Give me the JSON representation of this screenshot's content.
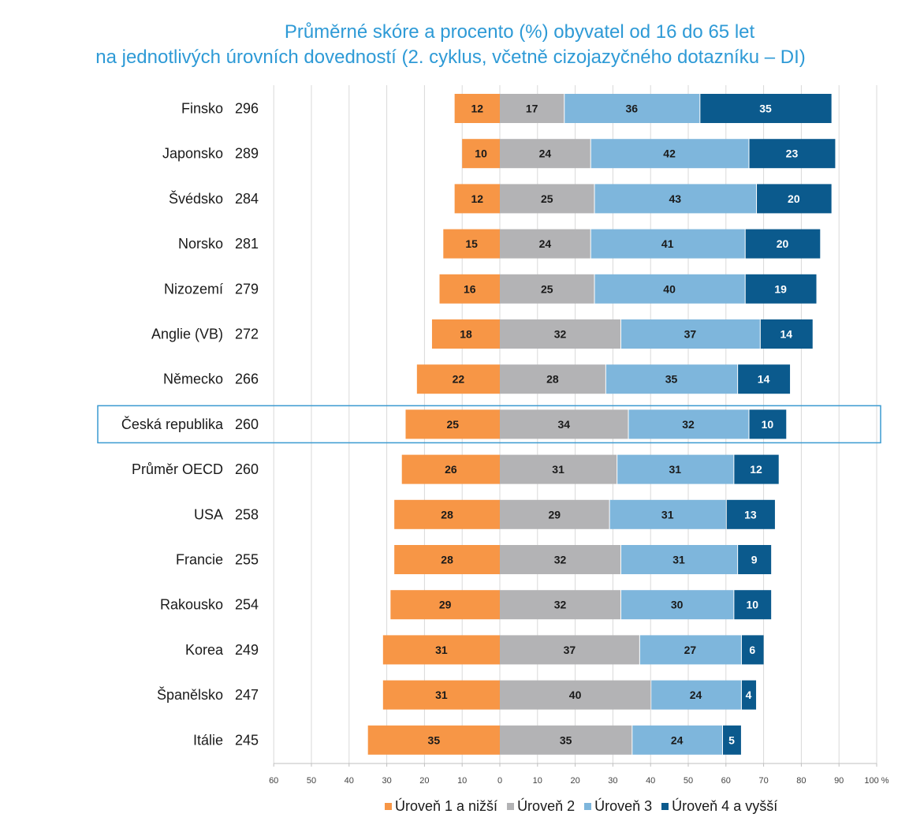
{
  "title_line1": "Průměrné skóre a procento (%) obyvatel od 16 do 65 let",
  "title_line2": "na jednotlivých úrovních dovedností (2. cyklus, včetně cizojazyčného dotazníku – DI)",
  "colors": {
    "title": "#2e9ad6",
    "level1": "#f79646",
    "level2": "#b3b3b5",
    "level3": "#7eb6dc",
    "level4": "#0b5a8d",
    "highlight": "#3a9ad1",
    "gridline": "#d9d9d9"
  },
  "chart_data": {
    "type": "bar",
    "orientation": "horizontal-diverging",
    "categories": [
      "Finsko",
      "Japonsko",
      "Švédsko",
      "Norsko",
      "Nizozemí",
      "Anglie (VB)",
      "Německo",
      "Česká republika",
      "Průměr OECD",
      "USA",
      "Francie",
      "Rakousko",
      "Korea",
      "Španělsko",
      "Itálie"
    ],
    "scores": [
      "296",
      "289",
      "284",
      "281",
      "279",
      "272",
      "266",
      "260",
      "260",
      "258",
      "255",
      "254",
      "249",
      "247",
      "245"
    ],
    "highlighted_category": "Česká republika",
    "series": [
      {
        "name": "Úroveň 1 a nižší",
        "direction": "negative",
        "values": [
          12,
          10,
          12,
          15,
          16,
          18,
          22,
          25,
          26,
          28,
          28,
          29,
          31,
          31,
          35
        ]
      },
      {
        "name": "Úroveň 2",
        "direction": "positive",
        "values": [
          17,
          24,
          25,
          24,
          25,
          32,
          28,
          34,
          31,
          29,
          32,
          32,
          37,
          40,
          35
        ]
      },
      {
        "name": "Úroveň 3",
        "direction": "positive",
        "values": [
          36,
          42,
          43,
          41,
          40,
          37,
          35,
          32,
          31,
          31,
          31,
          30,
          27,
          24,
          24
        ]
      },
      {
        "name": "Úroveň 4 a vyšší",
        "direction": "positive",
        "values": [
          35,
          23,
          20,
          20,
          19,
          14,
          14,
          10,
          12,
          13,
          9,
          10,
          6,
          4,
          5
        ]
      }
    ],
    "xlim": [
      -60,
      100
    ],
    "x_ticks": [
      "60",
      "50",
      "40",
      "30",
      "20",
      "10",
      "0",
      "10",
      "20",
      "30",
      "40",
      "50",
      "60",
      "70",
      "80",
      "90",
      "100 %"
    ],
    "grid": true,
    "legend_position": "bottom"
  }
}
